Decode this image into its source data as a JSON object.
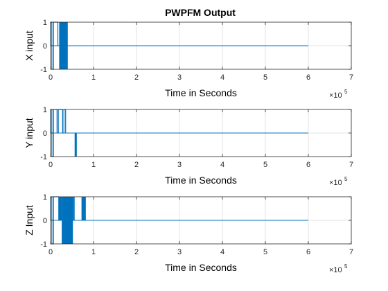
{
  "figure_title": "PWPFM Output",
  "chart_data": [
    {
      "type": "line",
      "title": "PWPFM Output",
      "ylabel": "X input",
      "xlabel": "Time in Seconds",
      "x_multiplier_label": "×10",
      "x_multiplier_exponent": "5",
      "x_ticks": [
        0,
        1,
        2,
        3,
        4,
        5,
        6,
        7
      ],
      "y_ticks": [
        -1,
        0,
        1
      ],
      "xlim": [
        0,
        700000
      ],
      "ylim": [
        -1,
        1
      ],
      "grid": true,
      "line_color": "#0072BD",
      "segments": [
        {
          "x_start": 0,
          "x_end": 3000,
          "level": 1
        },
        {
          "x_start": 3000,
          "x_end": 7000,
          "level": -1
        },
        {
          "x_start": 7000,
          "x_end": 17000,
          "level": 1
        },
        {
          "x_start": 17000,
          "x_end": 19000,
          "level": 0
        }
      ],
      "dense_regions": [
        {
          "x_start": 20000,
          "x_end": 40000,
          "low": -1,
          "high": 1
        }
      ],
      "zero_until": 600000
    },
    {
      "type": "line",
      "title": "",
      "ylabel": "Y input",
      "xlabel": "Time in Seconds",
      "x_multiplier_label": "×10",
      "x_multiplier_exponent": "5",
      "x_ticks": [
        0,
        1,
        2,
        3,
        4,
        5,
        6,
        7
      ],
      "y_ticks": [
        -1,
        0,
        1
      ],
      "xlim": [
        0,
        700000
      ],
      "ylim": [
        -1,
        1
      ],
      "grid": true,
      "line_color": "#0072BD",
      "segments": [
        {
          "x_start": 0,
          "x_end": 3000,
          "level": 1
        },
        {
          "x_start": 3000,
          "x_end": 7000,
          "level": -1
        },
        {
          "x_start": 7000,
          "x_end": 15000,
          "level": 1
        },
        {
          "x_start": 15000,
          "x_end": 18000,
          "level": 0
        },
        {
          "x_start": 18000,
          "x_end": 28000,
          "level": 1
        },
        {
          "x_start": 28000,
          "x_end": 31000,
          "level": 0
        },
        {
          "x_start": 31000,
          "x_end": 35000,
          "level": 1
        }
      ],
      "dense_regions": [
        {
          "x_start": 56000,
          "x_end": 61000,
          "low": -1,
          "high": 0
        }
      ],
      "zero_until": 600000
    },
    {
      "type": "line",
      "title": "",
      "ylabel": "Z Input",
      "xlabel": "Time in Seconds",
      "x_multiplier_label": "×10",
      "x_multiplier_exponent": "5",
      "x_ticks": [
        0,
        1,
        2,
        3,
        4,
        5,
        6,
        7
      ],
      "y_ticks": [
        -1,
        0,
        1
      ],
      "xlim": [
        0,
        700000
      ],
      "ylim": [
        -1,
        1
      ],
      "grid": true,
      "line_color": "#0072BD",
      "segments": [
        {
          "x_start": 0,
          "x_end": 3000,
          "level": 1
        },
        {
          "x_start": 3000,
          "x_end": 7000,
          "level": -1
        },
        {
          "x_start": 7000,
          "x_end": 19000,
          "level": 1
        }
      ],
      "dense_regions": [
        {
          "x_start": 19000,
          "x_end": 26000,
          "low": 0,
          "high": 1
        },
        {
          "x_start": 26000,
          "x_end": 52000,
          "low": -1,
          "high": 1
        },
        {
          "x_start": 52000,
          "x_end": 56000,
          "low": 0,
          "high": 1
        },
        {
          "x_start": 72000,
          "x_end": 82000,
          "low": 0,
          "high": 1
        }
      ],
      "zero_until": 600000
    }
  ]
}
